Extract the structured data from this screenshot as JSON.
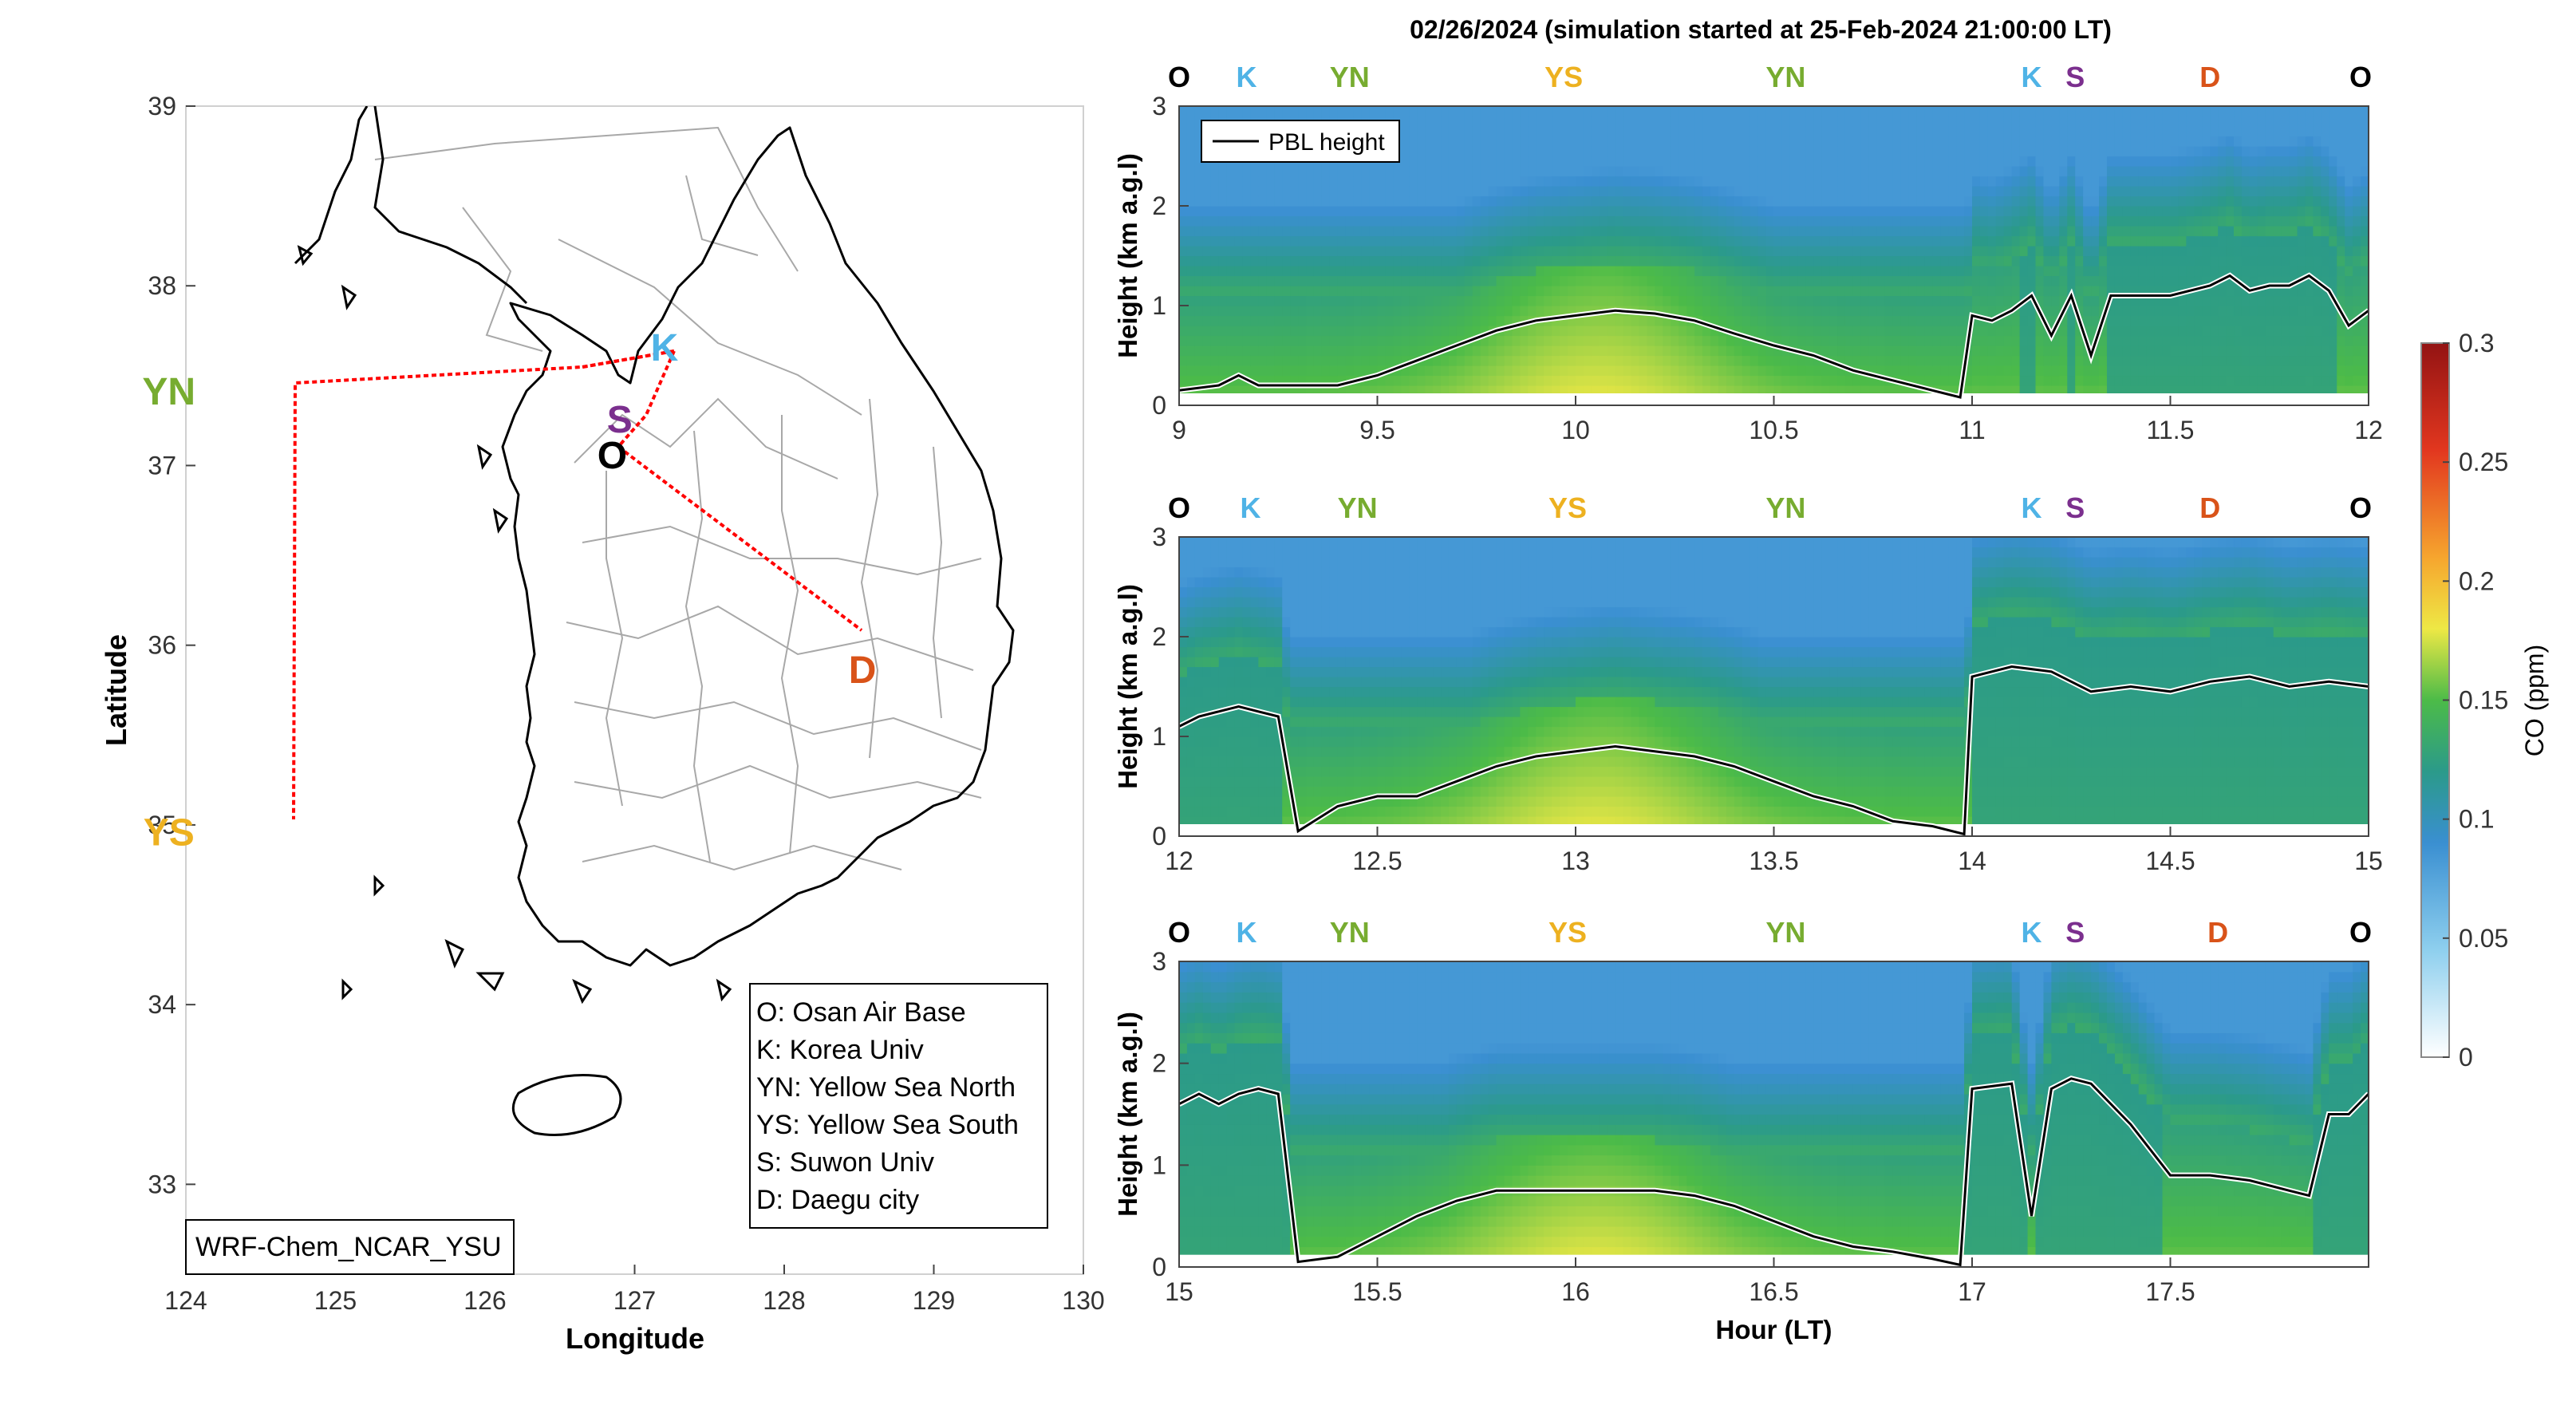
{
  "title": "02/26/2024 (simulation started at 25-Feb-2024 21:00:00 LT)",
  "map": {
    "xlabel": "Longitude",
    "ylabel": "Latitude",
    "xticks": [
      "124",
      "125",
      "126",
      "127",
      "128",
      "129",
      "130"
    ],
    "yticks": [
      "33",
      "34",
      "35",
      "36",
      "37",
      "38",
      "39"
    ],
    "xlim": [
      124,
      130
    ],
    "ylim": [
      32.5,
      39
    ],
    "model_label": "WRF-Chem_NCAR_YSU",
    "sites": [
      {
        "code": "K",
        "lon": 127.2,
        "lat": 37.65,
        "color": "#4fb3e6"
      },
      {
        "code": "S",
        "lon": 126.9,
        "lat": 37.25,
        "color": "#7b2f8e"
      },
      {
        "code": "O",
        "lon": 126.85,
        "lat": 37.05,
        "color": "#000000"
      },
      {
        "code": "YN",
        "lon": 124.5,
        "lat": 37.45,
        "color": "#77ac30"
      },
      {
        "code": "YS",
        "lon": 124.5,
        "lat": 35.05,
        "color": "#edb120"
      },
      {
        "code": "D",
        "lon": 128.55,
        "lat": 35.9,
        "color": "#d95319"
      }
    ],
    "legend": [
      "O: Osan Air Base",
      "K: Korea Univ",
      "YN: Yellow Sea North",
      "YS: Yellow Sea South",
      "S: Suwon Univ",
      "D: Daegu city"
    ],
    "track_color": "#ff0000"
  },
  "colorbar": {
    "label": "CO (ppm)",
    "ticks": [
      "0",
      "0.05",
      "0.1",
      "0.15",
      "0.2",
      "0.25",
      "0.3"
    ],
    "range": [
      0,
      0.3
    ]
  },
  "chart_data": [
    {
      "type": "heatmap",
      "xlim": [
        9,
        12
      ],
      "ylim": [
        0,
        3
      ],
      "xticks": [
        "9",
        "9.5",
        "10",
        "10.5",
        "11",
        "11.5",
        "12"
      ],
      "yticks": [
        "0",
        "1",
        "2",
        "3"
      ],
      "ylabel": "Height (km a.g.l)",
      "xlabel": "",
      "legend": "PBL height",
      "legend_position": "top-left",
      "top_labels": [
        {
          "t": "O",
          "x": 9.0,
          "color": "#000000"
        },
        {
          "t": "K",
          "x": 9.17,
          "color": "#4fb3e6"
        },
        {
          "t": "YN",
          "x": 9.43,
          "color": "#77ac30"
        },
        {
          "t": "YS",
          "x": 9.97,
          "color": "#edb120"
        },
        {
          "t": "YN",
          "x": 10.53,
          "color": "#77ac30"
        },
        {
          "t": "K",
          "x": 11.15,
          "color": "#4fb3e6"
        },
        {
          "t": "S",
          "x": 11.26,
          "color": "#7b2f8e"
        },
        {
          "t": "D",
          "x": 11.6,
          "color": "#d95319"
        },
        {
          "t": "O",
          "x": 11.98,
          "color": "#000000"
        }
      ],
      "pbl": {
        "x": [
          9.0,
          9.1,
          9.15,
          9.2,
          9.3,
          9.4,
          9.5,
          9.6,
          9.7,
          9.8,
          9.9,
          10.0,
          10.1,
          10.2,
          10.3,
          10.4,
          10.5,
          10.6,
          10.7,
          10.8,
          10.9,
          10.97,
          11.0,
          11.05,
          11.1,
          11.15,
          11.2,
          11.25,
          11.3,
          11.35,
          11.4,
          11.5,
          11.6,
          11.65,
          11.7,
          11.75,
          11.8,
          11.85,
          11.9,
          11.95,
          12.0
        ],
        "y": [
          0.15,
          0.2,
          0.3,
          0.2,
          0.2,
          0.2,
          0.3,
          0.45,
          0.6,
          0.75,
          0.85,
          0.9,
          0.95,
          0.92,
          0.85,
          0.72,
          0.6,
          0.5,
          0.35,
          0.25,
          0.15,
          0.08,
          0.9,
          0.85,
          0.95,
          1.1,
          0.7,
          1.1,
          0.5,
          1.1,
          1.1,
          1.1,
          1.2,
          1.3,
          1.15,
          1.2,
          1.2,
          1.3,
          1.15,
          0.8,
          0.95
        ]
      }
    },
    {
      "type": "heatmap",
      "xlim": [
        12,
        15
      ],
      "ylim": [
        0,
        3
      ],
      "xticks": [
        "12",
        "12.5",
        "13",
        "13.5",
        "14",
        "14.5",
        "15"
      ],
      "yticks": [
        "0",
        "1",
        "2",
        "3"
      ],
      "ylabel": "Height (km a.g.l)",
      "xlabel": "",
      "top_labels": [
        {
          "t": "O",
          "x": 12.0,
          "color": "#000000"
        },
        {
          "t": "K",
          "x": 12.18,
          "color": "#4fb3e6"
        },
        {
          "t": "YN",
          "x": 12.45,
          "color": "#77ac30"
        },
        {
          "t": "YS",
          "x": 12.98,
          "color": "#edb120"
        },
        {
          "t": "YN",
          "x": 13.53,
          "color": "#77ac30"
        },
        {
          "t": "K",
          "x": 14.15,
          "color": "#4fb3e6"
        },
        {
          "t": "S",
          "x": 14.26,
          "color": "#7b2f8e"
        },
        {
          "t": "D",
          "x": 14.6,
          "color": "#d95319"
        },
        {
          "t": "O",
          "x": 14.98,
          "color": "#000000"
        }
      ],
      "pbl": {
        "x": [
          12.0,
          12.05,
          12.1,
          12.15,
          12.2,
          12.25,
          12.3,
          12.4,
          12.5,
          12.6,
          12.7,
          12.8,
          12.9,
          13.0,
          13.1,
          13.2,
          13.3,
          13.4,
          13.5,
          13.6,
          13.7,
          13.8,
          13.9,
          13.98,
          14.0,
          14.1,
          14.2,
          14.3,
          14.4,
          14.5,
          14.6,
          14.7,
          14.8,
          14.9,
          15.0
        ],
        "y": [
          1.1,
          1.2,
          1.25,
          1.3,
          1.25,
          1.2,
          0.05,
          0.3,
          0.4,
          0.4,
          0.55,
          0.7,
          0.8,
          0.85,
          0.9,
          0.85,
          0.8,
          0.7,
          0.55,
          0.4,
          0.3,
          0.15,
          0.1,
          0.02,
          1.6,
          1.7,
          1.65,
          1.45,
          1.5,
          1.45,
          1.55,
          1.6,
          1.5,
          1.55,
          1.5
        ]
      }
    },
    {
      "type": "heatmap",
      "xlim": [
        15,
        18
      ],
      "ylim": [
        0,
        3
      ],
      "xticks": [
        "15",
        "15.5",
        "16",
        "16.5",
        "17",
        "17.5"
      ],
      "yticks": [
        "0",
        "1",
        "2",
        "3"
      ],
      "ylabel": "Height (km a.g.l)",
      "xlabel": "Hour (LT)",
      "top_labels": [
        {
          "t": "O",
          "x": 15.0,
          "color": "#000000"
        },
        {
          "t": "K",
          "x": 15.17,
          "color": "#4fb3e6"
        },
        {
          "t": "YN",
          "x": 15.43,
          "color": "#77ac30"
        },
        {
          "t": "YS",
          "x": 15.98,
          "color": "#edb120"
        },
        {
          "t": "YN",
          "x": 16.53,
          "color": "#77ac30"
        },
        {
          "t": "K",
          "x": 17.15,
          "color": "#4fb3e6"
        },
        {
          "t": "S",
          "x": 17.26,
          "color": "#7b2f8e"
        },
        {
          "t": "D",
          "x": 17.62,
          "color": "#d95319"
        },
        {
          "t": "O",
          "x": 17.98,
          "color": "#000000"
        }
      ],
      "pbl": {
        "x": [
          15.0,
          15.05,
          15.1,
          15.15,
          15.2,
          15.25,
          15.3,
          15.4,
          15.5,
          15.6,
          15.7,
          15.8,
          15.9,
          16.0,
          16.1,
          16.2,
          16.3,
          16.4,
          16.5,
          16.6,
          16.7,
          16.8,
          16.9,
          16.97,
          17.0,
          17.1,
          17.15,
          17.2,
          17.25,
          17.3,
          17.4,
          17.5,
          17.6,
          17.7,
          17.8,
          17.85,
          17.9,
          17.95,
          18.0
        ],
        "y": [
          1.6,
          1.7,
          1.6,
          1.7,
          1.75,
          1.7,
          0.05,
          0.1,
          0.3,
          0.5,
          0.65,
          0.75,
          0.75,
          0.75,
          0.75,
          0.75,
          0.7,
          0.6,
          0.45,
          0.3,
          0.2,
          0.15,
          0.08,
          0.02,
          1.75,
          1.8,
          0.5,
          1.75,
          1.85,
          1.8,
          1.4,
          0.9,
          0.9,
          0.85,
          0.75,
          0.7,
          1.5,
          1.5,
          1.7
        ]
      }
    }
  ]
}
